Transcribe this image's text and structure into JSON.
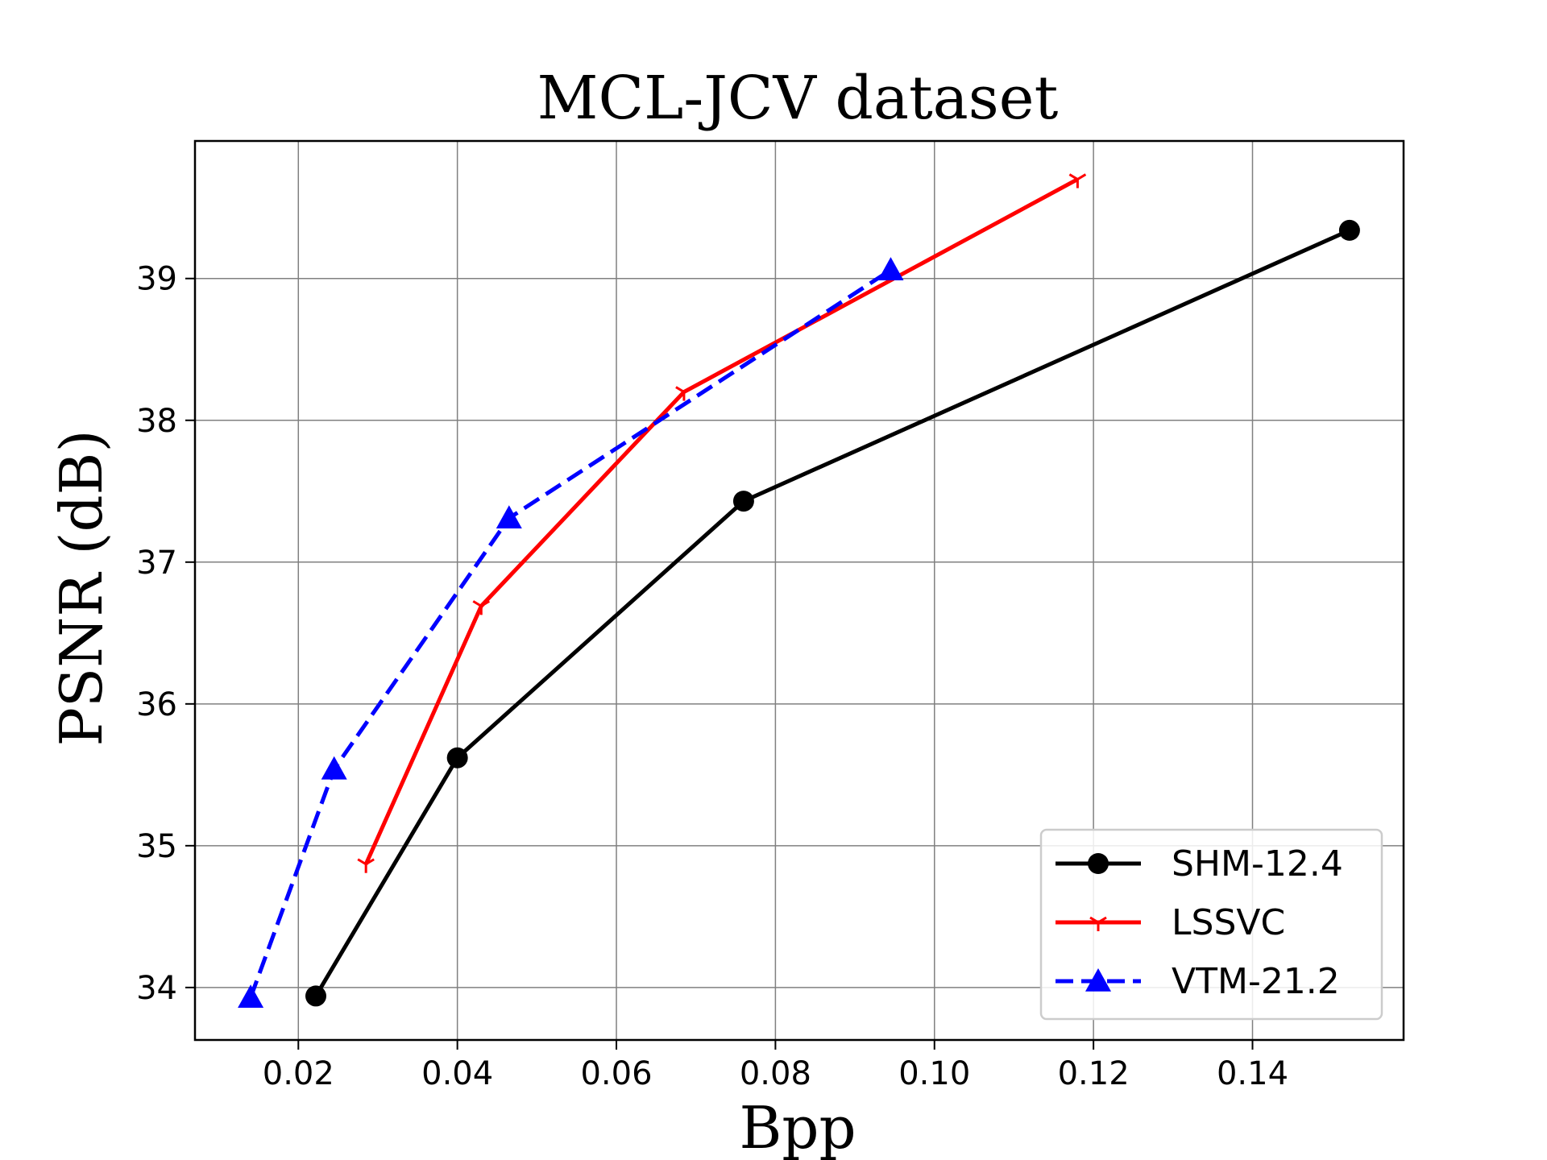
{
  "chart_data": {
    "type": "line",
    "title": "MCL-JCV dataset",
    "xlabel": "Bpp",
    "ylabel": "PSNR (dB)",
    "xlim": [
      0.007,
      0.159
    ],
    "ylim": [
      33.63,
      39.97
    ],
    "xticks": [
      0.02,
      0.04,
      0.06,
      0.08,
      0.1,
      0.12,
      0.14
    ],
    "xtick_labels": [
      "0.02",
      "0.04",
      "0.06",
      "0.08",
      "0.10",
      "0.12",
      "0.14"
    ],
    "yticks": [
      34,
      35,
      36,
      37,
      38,
      39
    ],
    "ytick_labels": [
      "34",
      "35",
      "36",
      "37",
      "38",
      "39"
    ],
    "grid": true,
    "legend_position": "lower-right",
    "series": [
      {
        "name": "SHM-12.4",
        "color": "#000000",
        "line_style": "solid",
        "marker": "circle",
        "x": [
          0.0222,
          0.04,
          0.076,
          0.1522
        ],
        "y": [
          33.94,
          35.62,
          37.43,
          39.34
        ]
      },
      {
        "name": "LSSVC",
        "color": "#ff0000",
        "line_style": "solid",
        "marker": "tri-down",
        "x": [
          0.0285,
          0.043,
          0.0685,
          0.118
        ],
        "y": [
          34.87,
          36.69,
          38.2,
          39.7
        ]
      },
      {
        "name": "VTM-21.2",
        "color": "#0000ff",
        "line_style": "dashed",
        "marker": "triangle-up",
        "x": [
          0.014,
          0.0245,
          0.0465,
          0.0945
        ],
        "y": [
          33.93,
          35.54,
          37.31,
          39.06
        ]
      }
    ]
  }
}
